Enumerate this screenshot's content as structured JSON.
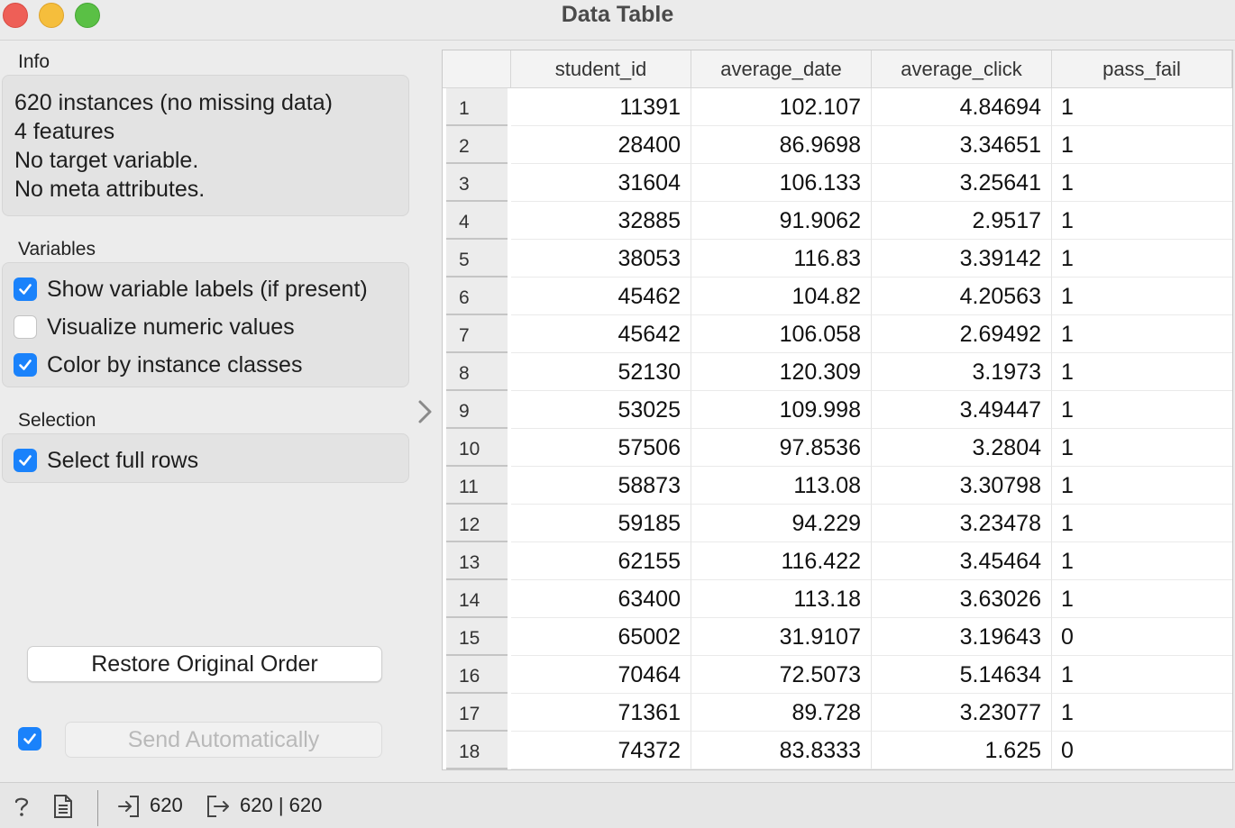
{
  "window": {
    "title": "Data Table"
  },
  "left_panel": {
    "info": {
      "label": "Info",
      "lines": [
        "620 instances (no missing data)",
        "4  features",
        "No target variable.",
        "No meta attributes."
      ]
    },
    "variables": {
      "label": "Variables",
      "options": [
        {
          "label": "Show variable labels (if present)",
          "checked": true
        },
        {
          "label": "Visualize numeric values",
          "checked": false
        },
        {
          "label": "Color by instance classes",
          "checked": true
        }
      ]
    },
    "selection": {
      "label": "Selection",
      "options": [
        {
          "label": "Select full rows",
          "checked": true
        }
      ]
    },
    "restore_button": "Restore Original Order",
    "send_automatically": {
      "checked": true,
      "label": "Send Automatically"
    }
  },
  "table": {
    "columns": [
      "student_id",
      "average_date",
      "average_click",
      "pass_fail"
    ],
    "rows": [
      {
        "n": "1",
        "cells": [
          "11391",
          "102.107",
          "4.84694",
          "1"
        ]
      },
      {
        "n": "2",
        "cells": [
          "28400",
          "86.9698",
          "3.34651",
          "1"
        ]
      },
      {
        "n": "3",
        "cells": [
          "31604",
          "106.133",
          "3.25641",
          "1"
        ]
      },
      {
        "n": "4",
        "cells": [
          "32885",
          "91.9062",
          "2.9517",
          "1"
        ]
      },
      {
        "n": "5",
        "cells": [
          "38053",
          "116.83",
          "3.39142",
          "1"
        ]
      },
      {
        "n": "6",
        "cells": [
          "45462",
          "104.82",
          "4.20563",
          "1"
        ]
      },
      {
        "n": "7",
        "cells": [
          "45642",
          "106.058",
          "2.69492",
          "1"
        ]
      },
      {
        "n": "8",
        "cells": [
          "52130",
          "120.309",
          "3.1973",
          "1"
        ]
      },
      {
        "n": "9",
        "cells": [
          "53025",
          "109.998",
          "3.49447",
          "1"
        ]
      },
      {
        "n": "10",
        "cells": [
          "57506",
          "97.8536",
          "3.2804",
          "1"
        ]
      },
      {
        "n": "11",
        "cells": [
          "58873",
          "113.08",
          "3.30798",
          "1"
        ]
      },
      {
        "n": "12",
        "cells": [
          "59185",
          "94.229",
          "3.23478",
          "1"
        ]
      },
      {
        "n": "13",
        "cells": [
          "62155",
          "116.422",
          "3.45464",
          "1"
        ]
      },
      {
        "n": "14",
        "cells": [
          "63400",
          "113.18",
          "3.63026",
          "1"
        ]
      },
      {
        "n": "15",
        "cells": [
          "65002",
          "31.9107",
          "3.19643",
          "0"
        ]
      },
      {
        "n": "16",
        "cells": [
          "70464",
          "72.5073",
          "5.14634",
          "1"
        ]
      },
      {
        "n": "17",
        "cells": [
          "71361",
          "89.728",
          "3.23077",
          "1"
        ]
      },
      {
        "n": "18",
        "cells": [
          "74372",
          "83.8333",
          "1.625",
          "0"
        ]
      }
    ]
  },
  "status_bar": {
    "icons": [
      "help-icon",
      "report-icon",
      "input-icon",
      "output-icon"
    ],
    "input_count": "620",
    "output_count": "620 | 620"
  },
  "colors": {
    "checkbox_accent": "#1a82fb",
    "close": "#ee5f57",
    "minimize": "#f5be3c",
    "zoom": "#5ac045"
  }
}
